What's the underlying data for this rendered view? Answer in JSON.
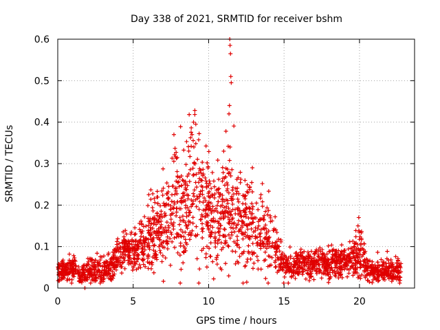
{
  "chart_data": {
    "type": "scatter",
    "title": "Day 338 of 2021, SRMTID for receiver bshm",
    "xlabel": "GPS time / hours",
    "ylabel": "SRMTID / TECUs",
    "xlim": [
      0,
      23.65
    ],
    "ylim": [
      0,
      0.6
    ],
    "xticks": [
      0,
      5,
      10,
      15,
      20
    ],
    "yticks": [
      0,
      0.1,
      0.2,
      0.3,
      0.4,
      0.5,
      0.6
    ],
    "xtick_labels": [
      "0",
      "5",
      "10",
      "15",
      "20"
    ],
    "ytick_labels": [
      "0",
      "0.1",
      "0.2",
      "0.3",
      "0.4",
      "0.5",
      "0.6"
    ],
    "grid": true,
    "marker": "+",
    "series_color": "#e00000",
    "profile": [
      [
        0.0,
        0.04,
        0.012
      ],
      [
        0.5,
        0.04,
        0.012
      ],
      [
        1.0,
        0.05,
        0.018
      ],
      [
        1.5,
        0.03,
        0.01
      ],
      [
        2.0,
        0.045,
        0.018
      ],
      [
        2.5,
        0.04,
        0.018
      ],
      [
        3.0,
        0.04,
        0.018
      ],
      [
        3.5,
        0.05,
        0.02
      ],
      [
        4.0,
        0.08,
        0.02
      ],
      [
        4.5,
        0.09,
        0.02
      ],
      [
        5.0,
        0.085,
        0.025
      ],
      [
        5.5,
        0.1,
        0.03
      ],
      [
        6.0,
        0.12,
        0.04
      ],
      [
        6.5,
        0.13,
        0.05
      ],
      [
        7.0,
        0.15,
        0.06
      ],
      [
        7.5,
        0.17,
        0.07
      ],
      [
        8.0,
        0.19,
        0.07
      ],
      [
        8.5,
        0.2,
        0.08
      ],
      [
        9.0,
        0.22,
        0.09
      ],
      [
        9.5,
        0.21,
        0.08
      ],
      [
        10.0,
        0.18,
        0.07
      ],
      [
        10.5,
        0.16,
        0.06
      ],
      [
        11.0,
        0.17,
        0.07
      ],
      [
        11.5,
        0.2,
        0.08
      ],
      [
        12.0,
        0.16,
        0.06
      ],
      [
        12.5,
        0.15,
        0.06
      ],
      [
        13.0,
        0.14,
        0.05
      ],
      [
        13.5,
        0.13,
        0.05
      ],
      [
        14.0,
        0.12,
        0.05
      ],
      [
        14.5,
        0.1,
        0.04
      ],
      [
        15.0,
        0.06,
        0.02
      ],
      [
        15.5,
        0.05,
        0.015
      ],
      [
        16.0,
        0.055,
        0.02
      ],
      [
        16.5,
        0.06,
        0.02
      ],
      [
        17.0,
        0.06,
        0.02
      ],
      [
        17.5,
        0.06,
        0.02
      ],
      [
        18.0,
        0.06,
        0.02
      ],
      [
        18.5,
        0.06,
        0.02
      ],
      [
        19.0,
        0.06,
        0.02
      ],
      [
        19.5,
        0.07,
        0.02
      ],
      [
        20.0,
        0.09,
        0.04
      ],
      [
        20.5,
        0.04,
        0.015
      ],
      [
        21.0,
        0.04,
        0.015
      ],
      [
        21.5,
        0.04,
        0.015
      ],
      [
        22.0,
        0.04,
        0.015
      ],
      [
        22.6,
        0.04,
        0.015
      ]
    ],
    "sample_count": 2300,
    "x_range": [
      0.0,
      22.75
    ],
    "notable_points": [
      {
        "x": 11.4,
        "y": 0.6
      },
      {
        "x": 11.42,
        "y": 0.585
      },
      {
        "x": 11.45,
        "y": 0.565
      },
      {
        "x": 11.47,
        "y": 0.51
      },
      {
        "x": 11.5,
        "y": 0.495
      },
      {
        "x": 11.35,
        "y": 0.42
      },
      {
        "x": 11.38,
        "y": 0.44
      },
      {
        "x": 11.42,
        "y": 0.34
      },
      {
        "x": 9.0,
        "y": 0.4
      },
      {
        "x": 9.15,
        "y": 0.395
      },
      {
        "x": 8.9,
        "y": 0.37
      },
      {
        "x": 7.7,
        "y": 0.37
      },
      {
        "x": 11.0,
        "y": 0.33
      },
      {
        "x": 12.9,
        "y": 0.29
      },
      {
        "x": 19.95,
        "y": 0.17
      },
      {
        "x": 19.9,
        "y": 0.15
      },
      {
        "x": 1.8,
        "y": 0.0
      }
    ]
  }
}
